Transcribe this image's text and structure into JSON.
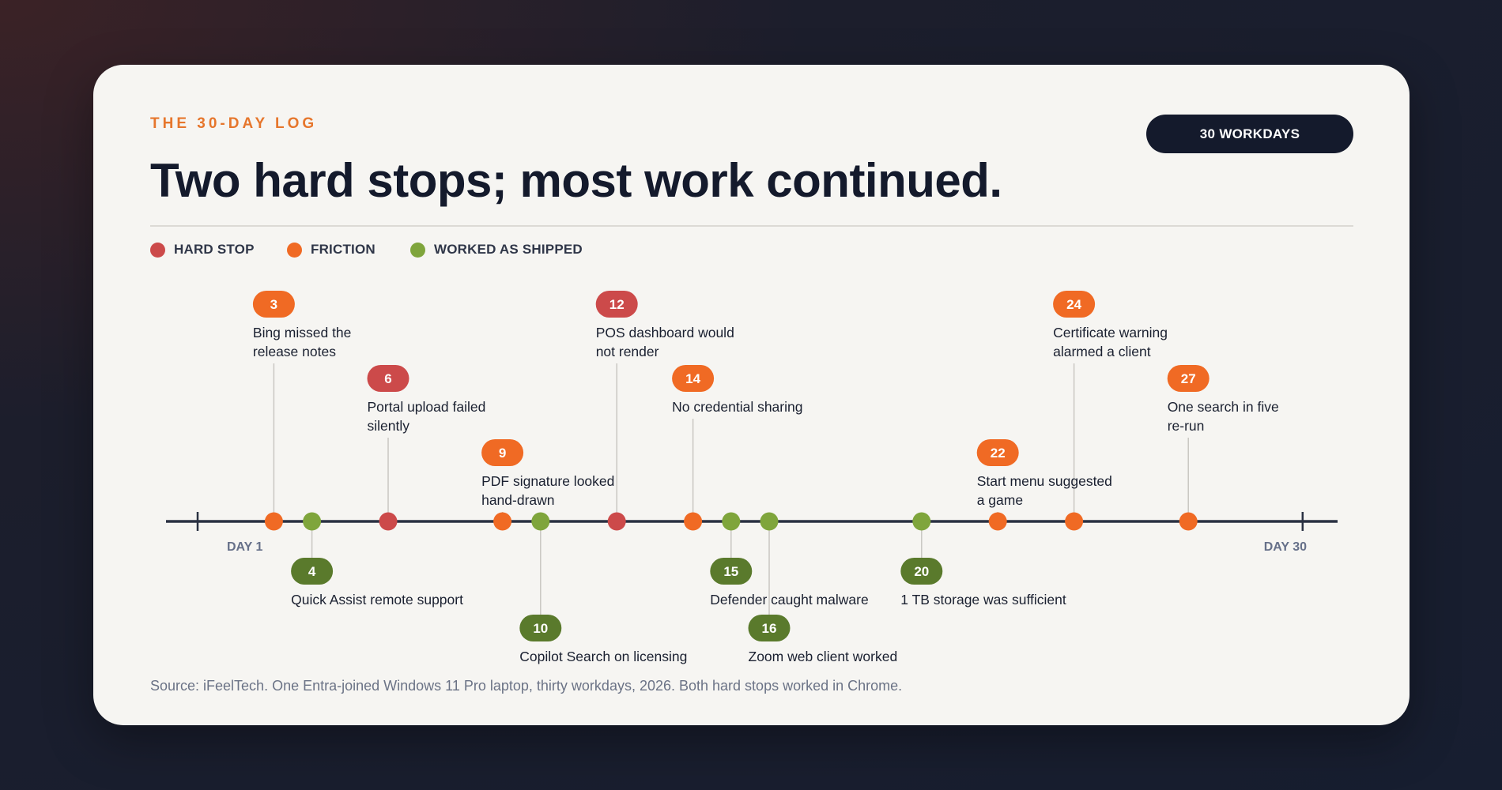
{
  "header": {
    "eyebrow": "THE 30-DAY LOG",
    "badge": "30 WORKDAYS",
    "title": "Two hard stops; most work continued."
  },
  "legend": [
    {
      "label": "HARD STOP",
      "color": "#cc4a4a"
    },
    {
      "label": "FRICTION",
      "color": "#f06a24"
    },
    {
      "label": "WORKED AS SHIPPED",
      "color": "#7fa53c"
    }
  ],
  "colors": {
    "hard": "#cc4a4a",
    "friction": "#f06a24",
    "worked": "#7fa53c",
    "worked_pill": "#5a7a2c",
    "axis": "#2a3142",
    "connector": "#c9c7c2"
  },
  "axis": {
    "start_label": "DAY 1",
    "end_label": "DAY 30",
    "day_min": 1,
    "day_max": 30
  },
  "events": [
    {
      "day": 3,
      "type": "friction",
      "text": [
        "Bing missed the",
        "release notes"
      ],
      "tier": 1,
      "side": "above"
    },
    {
      "day": 4,
      "type": "worked",
      "text": [
        "Quick Assist remote support"
      ],
      "tier": 1,
      "side": "below"
    },
    {
      "day": 6,
      "type": "hard",
      "text": [
        "Portal upload failed",
        "silently"
      ],
      "tier": 2,
      "side": "above"
    },
    {
      "day": 9,
      "type": "friction",
      "text": [
        "PDF signature looked",
        "hand-drawn"
      ],
      "tier": 3,
      "side": "above"
    },
    {
      "day": 10,
      "type": "worked",
      "text": [
        "Copilot Search on licensing"
      ],
      "tier": 2,
      "side": "below"
    },
    {
      "day": 12,
      "type": "hard",
      "text": [
        "POS dashboard would",
        "not render"
      ],
      "tier": 1,
      "side": "above"
    },
    {
      "day": 14,
      "type": "friction",
      "text": [
        "No credential sharing"
      ],
      "tier": 2,
      "side": "above"
    },
    {
      "day": 15,
      "type": "worked",
      "text": [
        "Defender caught malware"
      ],
      "tier": 1,
      "side": "below"
    },
    {
      "day": 16,
      "type": "worked",
      "text": [
        "Zoom web client worked"
      ],
      "tier": 2,
      "side": "below"
    },
    {
      "day": 20,
      "type": "worked",
      "text": [
        "1 TB storage was sufficient"
      ],
      "tier": 1,
      "side": "below"
    },
    {
      "day": 22,
      "type": "friction",
      "text": [
        "Start menu suggested",
        "a game"
      ],
      "tier": 3,
      "side": "above"
    },
    {
      "day": 24,
      "type": "friction",
      "text": [
        "Certificate warning",
        "alarmed a client"
      ],
      "tier": 1,
      "side": "above"
    },
    {
      "day": 27,
      "type": "friction",
      "text": [
        "One search in five",
        "re-run"
      ],
      "tier": 2,
      "side": "above"
    }
  ],
  "source": "Source: iFeelTech. One Entra-joined Windows 11 Pro laptop, thirty workdays, 2026. Both hard stops worked in Chrome."
}
